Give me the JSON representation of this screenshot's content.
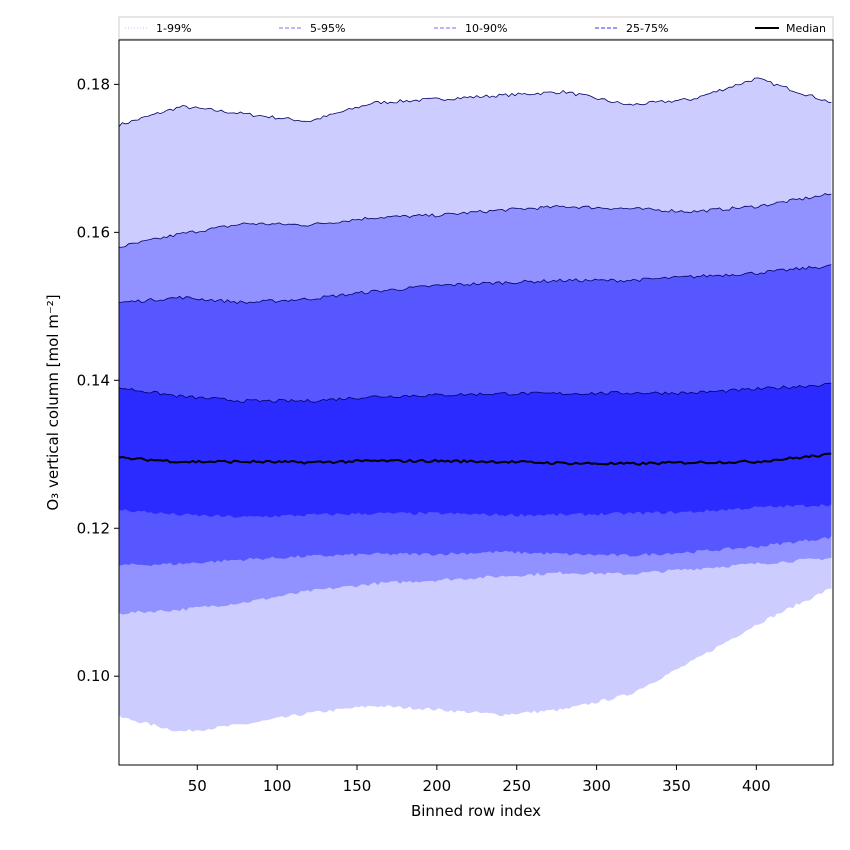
{
  "chart_data": {
    "type": "area",
    "title": "",
    "xlabel": "Binned row index",
    "ylabel": "O₃ vertical column [mol m⁻²]",
    "xlim": [
      1,
      448
    ],
    "ylim": [
      0.088,
      0.186
    ],
    "xticks": [
      50,
      100,
      150,
      200,
      250,
      300,
      350,
      400
    ],
    "yticks": [
      0.1,
      0.12,
      0.14,
      0.16,
      0.18
    ],
    "ytick_labels": [
      "0.10",
      "0.12",
      "0.14",
      "0.16",
      "0.18"
    ],
    "x": [
      1,
      40,
      80,
      120,
      160,
      200,
      240,
      280,
      320,
      360,
      400,
      448
    ],
    "bands": [
      {
        "name": "1-99%",
        "color": "#ccccff",
        "lower": [
          0.0945,
          0.0925,
          0.0935,
          0.095,
          0.096,
          0.0955,
          0.0948,
          0.0955,
          0.0975,
          0.102,
          0.107,
          0.112
        ],
        "upper": [
          0.1745,
          0.177,
          0.176,
          0.175,
          0.1775,
          0.178,
          0.1785,
          0.179,
          0.1772,
          0.178,
          0.1808,
          0.1775
        ]
      },
      {
        "name": "5-95%",
        "color": "#9191ff",
        "lower": [
          0.1085,
          0.109,
          0.11,
          0.1115,
          0.1125,
          0.113,
          0.1135,
          0.114,
          0.1138,
          0.1145,
          0.1152,
          0.116
        ],
        "upper": [
          0.158,
          0.1598,
          0.1612,
          0.161,
          0.162,
          0.1623,
          0.163,
          0.1635,
          0.1632,
          0.1628,
          0.1635,
          0.1652
        ]
      },
      {
        "name": "10-90%",
        "color": "#5757ff",
        "lower": [
          0.115,
          0.1152,
          0.1158,
          0.1162,
          0.1165,
          0.1165,
          0.1168,
          0.1165,
          0.1163,
          0.1168,
          0.1175,
          0.1188
        ],
        "upper": [
          0.1505,
          0.1512,
          0.1505,
          0.151,
          0.152,
          0.1528,
          0.1532,
          0.1535,
          0.1535,
          0.154,
          0.1545,
          0.1555
        ]
      },
      {
        "name": "25-75%",
        "color": "#2b2bff",
        "lower": [
          0.1225,
          0.1218,
          0.1215,
          0.1218,
          0.122,
          0.122,
          0.1218,
          0.1218,
          0.122,
          0.1222,
          0.1228,
          0.1232
        ],
        "upper": [
          0.139,
          0.1378,
          0.1372,
          0.1372,
          0.1378,
          0.138,
          0.1382,
          0.1382,
          0.1383,
          0.1383,
          0.1388,
          0.1395
        ]
      }
    ],
    "median": {
      "name": "Median",
      "color": "#000000",
      "values": [
        0.1295,
        0.129,
        0.129,
        0.1289,
        0.1291,
        0.1291,
        0.129,
        0.1288,
        0.1287,
        0.1289,
        0.129,
        0.13
      ]
    },
    "legend": {
      "placement": "top",
      "entries": [
        {
          "label": "1-99%",
          "color": "#ccccff",
          "style": "dotted"
        },
        {
          "label": "5-95%",
          "color": "#9191ff",
          "style": "dashed"
        },
        {
          "label": "10-90%",
          "color": "#8a8aff",
          "style": "dashed"
        },
        {
          "label": "25-75%",
          "color": "#5b5bff",
          "style": "dashed"
        },
        {
          "label": "Median",
          "color": "#000000",
          "style": "solid"
        }
      ]
    }
  }
}
